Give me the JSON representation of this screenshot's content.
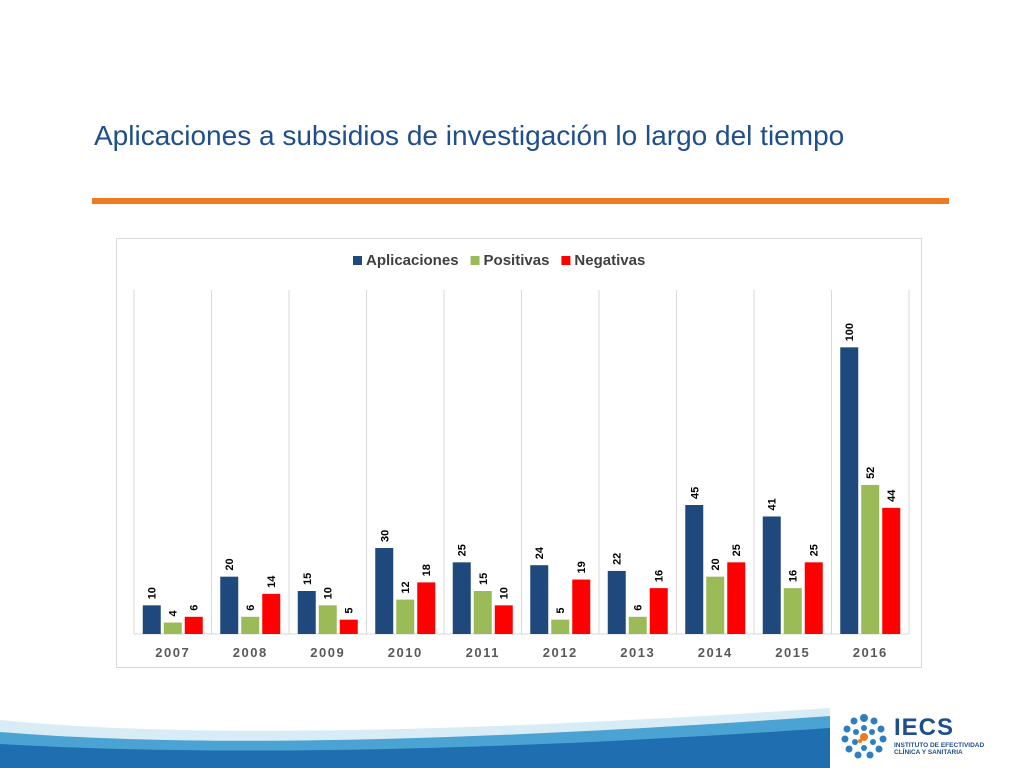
{
  "slide": {
    "title": "Aplicaciones a subsidios de investigación lo largo del tiempo"
  },
  "colors": {
    "title": "#1f4e8c",
    "rule": "#ef7a20",
    "aplicaciones": "#1f497d",
    "positivas": "#9bbb59",
    "negativas": "#ff0000"
  },
  "chart_data": {
    "type": "bar",
    "title": "",
    "xlabel": "",
    "ylabel": "",
    "categories": [
      "2007",
      "2008",
      "2009",
      "2010",
      "2011",
      "2012",
      "2013",
      "2014",
      "2015",
      "2016"
    ],
    "series": [
      {
        "name": "Aplicaciones",
        "color": "#1f497d",
        "values": [
          10,
          20,
          15,
          30,
          25,
          24,
          22,
          45,
          41,
          100
        ]
      },
      {
        "name": "Positivas",
        "color": "#9bbb59",
        "values": [
          4,
          6,
          10,
          12,
          15,
          5,
          6,
          20,
          16,
          52
        ]
      },
      {
        "name": "Negativas",
        "color": "#ff0000",
        "values": [
          6,
          14,
          5,
          18,
          10,
          19,
          16,
          25,
          25,
          44
        ]
      }
    ],
    "ylim": [
      0,
      120
    ],
    "legend": "top-center",
    "grid": "vertical",
    "data_labels": true
  },
  "logo": {
    "name": "IECS",
    "subtitle": "INSTITUTO DE EFECTIVIDAD CLÍNICA Y SANITARIA"
  }
}
